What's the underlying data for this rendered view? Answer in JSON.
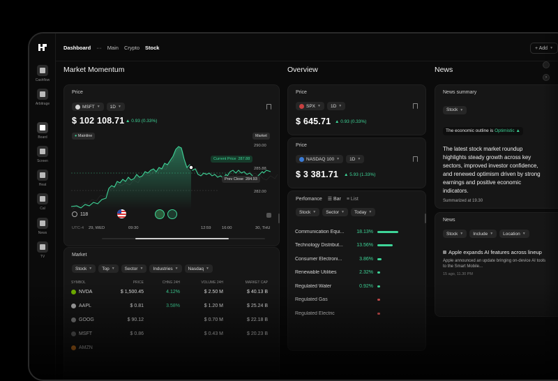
{
  "nav": {
    "dashboard": "Dashboard",
    "dots": "···",
    "main": "Main",
    "crypto": "Crypto",
    "stock": "Stock",
    "add": "+ Add"
  },
  "sidebar": {
    "items": [
      "Cashflow",
      "Arbitrage",
      "Board",
      "Screen",
      "Heat",
      "Cal",
      "News",
      "TV"
    ]
  },
  "sections": {
    "market_momentum": "Market Momentum",
    "overview": "Overview",
    "news": "News"
  },
  "price_card": {
    "title": "Price",
    "ticker": "MSFT",
    "range": "1D",
    "price": "$ 102 108.71",
    "change": "▲ 0.93 (0.33%)",
    "mainline": "Mainline",
    "market": "Market",
    "y_ticks": [
      "290.00",
      "285.88",
      "282.00"
    ],
    "current_label": "Current Price",
    "current_value": "287.88",
    "prev_label": "Prev Close",
    "prev_value": "284.93",
    "count": "118",
    "x_labels": [
      "UTC-4",
      "29, WED",
      "09:30",
      "12:59",
      "16:00",
      "30, THU"
    ]
  },
  "overview": {
    "spx": {
      "title": "Price",
      "ticker": "SPX",
      "range": "1D",
      "price": "$ 645.71",
      "change": "▲ 0.93 (0.33%)"
    },
    "nasdaq": {
      "title": "Price",
      "ticker": "NASDAQ 100",
      "range": "1D",
      "price": "$ 3 381.71",
      "change": "▲ 5.93 (1.33%)"
    }
  },
  "performance": {
    "title": "Perfomance",
    "bar": "Bar",
    "list": "List",
    "filters": [
      "Stock",
      "Sector",
      "Today"
    ],
    "rows": [
      {
        "name": "Communication Equi...",
        "pct": "18.13%",
        "value": 18.13,
        "color": "#3ed598"
      },
      {
        "name": "Technology Distribut...",
        "pct": "13.56%",
        "value": 13.56,
        "color": "#3ed598"
      },
      {
        "name": "Consumer Electroni...",
        "pct": "3.86%",
        "value": 3.86,
        "color": "#3ed598"
      },
      {
        "name": "Renewable Utilities",
        "pct": "2.32%",
        "value": 2.32,
        "color": "#3ed598"
      },
      {
        "name": "Regulated Water",
        "pct": "0.92%",
        "value": 0.92,
        "color": "#3ed598"
      },
      {
        "name": "Regulated Gas",
        "pct": "",
        "value": 1.2,
        "color": "#e05555"
      },
      {
        "name": "Regulated Electric",
        "pct": "",
        "value": 1.5,
        "color": "#e05555"
      }
    ]
  },
  "market": {
    "title": "Market",
    "filters": [
      "Stock",
      "Top",
      "Sector",
      "Industries",
      "Nasdaq"
    ],
    "headers": [
      "SYMBOL",
      "PRICE",
      "CHNG 24H",
      "VOLUME 24H",
      "MARKET CAP"
    ],
    "rows": [
      {
        "sym": "NVDA",
        "price": "$ 1,500.45",
        "chg": "4.12%",
        "chg_color": "#3ed598",
        "vol": "$ 2.50 M",
        "cap": "$ 40.13 B"
      },
      {
        "sym": "AAPL",
        "price": "$ 0.81",
        "chg": "3.58%",
        "chg_color": "#3ed598",
        "vol": "$ 1.20 M",
        "cap": "$ 25.24 B"
      },
      {
        "sym": "GOOG",
        "price": "$ 90.12",
        "chg": "",
        "chg_color": "#e05555",
        "vol": "$ 0.70 M",
        "cap": "$ 22.18 B"
      },
      {
        "sym": "MSFT",
        "price": "$ 0.86",
        "chg": "",
        "chg_color": "#e05555",
        "vol": "$ 0.43 M",
        "cap": "$ 20.23 B"
      },
      {
        "sym": "AMZN",
        "price": "",
        "chg": "",
        "chg_color": "#e05555",
        "vol": "",
        "cap": ""
      }
    ]
  },
  "news_summary": {
    "title": "News summary",
    "filter": "Stock",
    "outline_prefix": "The economic outline is",
    "outline_value": "Optimistic ▲",
    "body": "The latest stock market roundup highlights steady growth across key sectors, improved investor confidence, and renewed optimism driven by strong earnings and positive economic indicators.",
    "summarized": "Summarized at 19.30"
  },
  "news_list": {
    "title": "News",
    "filters": [
      "Stock",
      "Include",
      "Location"
    ],
    "headline": "Apple expands AI features across lineup",
    "sub": "Apple announced an update bringing on-device AI tools to the Smart Mobile...",
    "meta": "15 ago, 11.30 PM"
  }
}
